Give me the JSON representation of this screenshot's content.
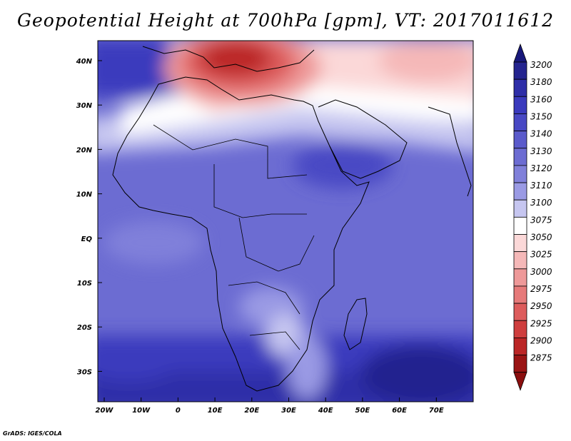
{
  "title": "Geopotential Height at 700hPa [gpm], VT: 2017011612",
  "credit": "GrADS: IGES/COLA",
  "map": {
    "lat_labels": [
      "40N",
      "30N",
      "20N",
      "10N",
      "EQ",
      "10S",
      "20S",
      "30S"
    ],
    "lon_labels": [
      "20W",
      "10W",
      "0",
      "10E",
      "20E",
      "30E",
      "40E",
      "50E",
      "60E",
      "70E"
    ]
  },
  "colorbar": {
    "levels": [
      "3200",
      "3180",
      "3160",
      "3150",
      "3140",
      "3130",
      "3120",
      "3110",
      "3100",
      "3075",
      "3050",
      "3025",
      "3000",
      "2975",
      "2950",
      "2925",
      "2900",
      "2875"
    ],
    "colors": [
      "#24248f",
      "#2e2ea8",
      "#3a3abd",
      "#4848c4",
      "#5a5acb",
      "#6c6cd2",
      "#8080da",
      "#9a9ae4",
      "#c6c6f0",
      "#ffffff",
      "#fbd8d8",
      "#f5b8b8",
      "#ee9999",
      "#e67a7a",
      "#dd5c5c",
      "#cf3e3e",
      "#bb2626",
      "#9a1414"
    ],
    "top_arrow_color": "#18187a",
    "bottom_arrow_color": "#8a0e0e"
  }
}
